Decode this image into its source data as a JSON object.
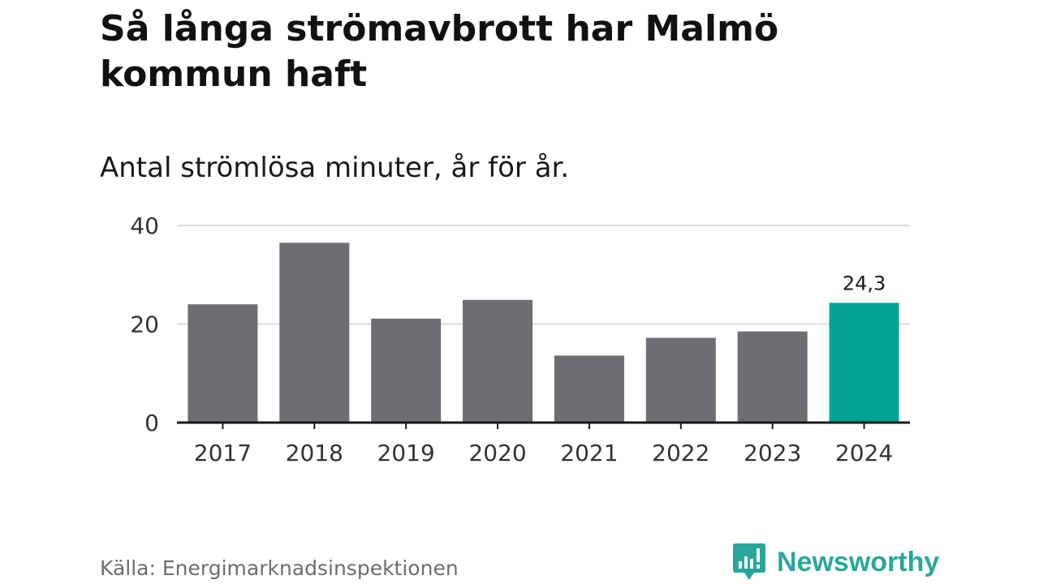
{
  "title": "Så långa strömavbrott har Malmö kommun haft",
  "subtitle": "Antal strömlösa minuter, år för år.",
  "source": "Källa: Energimarknadsinspektionen",
  "brand": {
    "name": "Newsworthy",
    "logo_icon": "newsworthy-logo-icon"
  },
  "colors": {
    "bar": "#6e6d73",
    "highlight": "#00a396",
    "grid": "#dcdcdc",
    "axis": "#1a1a1a",
    "brand": "#2aa79a"
  },
  "chart_data": {
    "type": "bar",
    "title": "Så långa strömavbrott har Malmö kommun haft",
    "subtitle": "Antal strömlösa minuter, år för år.",
    "xlabel": "",
    "ylabel": "",
    "categories": [
      "2017",
      "2018",
      "2019",
      "2020",
      "2021",
      "2022",
      "2023",
      "2024"
    ],
    "values": [
      24.0,
      36.5,
      21.1,
      24.9,
      13.6,
      17.2,
      18.5,
      24.3
    ],
    "ylim": [
      0,
      40
    ],
    "yticks": [
      0,
      20,
      40
    ],
    "highlight_index": 7,
    "data_labels": [
      {
        "index": 7,
        "text": "24,3"
      }
    ],
    "grid": true
  }
}
